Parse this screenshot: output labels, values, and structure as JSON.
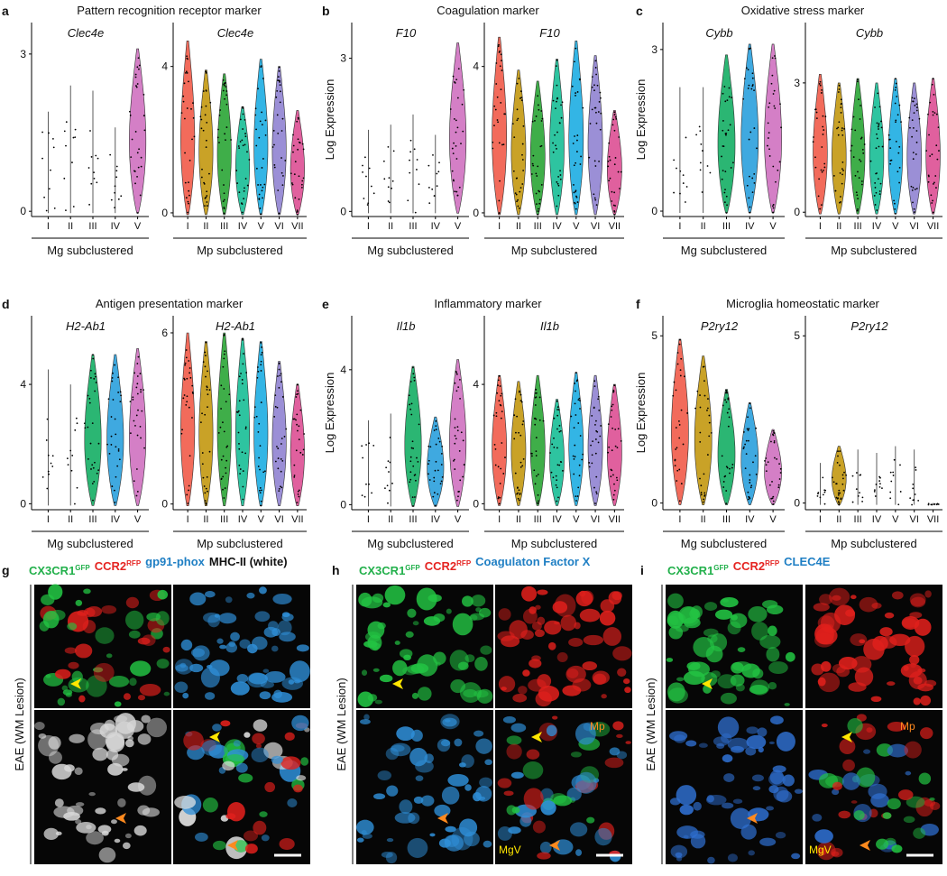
{
  "panels": [
    {
      "letter": "a",
      "title": "Pattern recognition receptor marker",
      "plots": [
        {
          "gene": "Clec4e",
          "group": "Mg subclustered",
          "categories": [
            "I",
            "II",
            "III",
            "IV",
            "V"
          ],
          "values": [
            1.9,
            2.4,
            2.3,
            1.6,
            3.1
          ],
          "colors": [
            null,
            null,
            null,
            null,
            "#d47fc6"
          ],
          "ylim": [
            -0.1,
            3.6
          ],
          "yticks": [
            0,
            3
          ]
        },
        {
          "gene": "Clec4e",
          "group": "Mp subclustered",
          "categories": [
            "I",
            "II",
            "III",
            "IV",
            "V",
            "VI",
            "VII"
          ],
          "values": [
            4.7,
            3.9,
            3.8,
            2.9,
            4.2,
            4.0,
            2.8
          ],
          "colors": [
            "#f26b5b",
            "#c9a227",
            "#3fae49",
            "#2ec4a0",
            "#33b5e5",
            "#9b8fd6",
            "#e0609e"
          ],
          "ylim": [
            -0.1,
            5.2
          ],
          "yticks": [
            0,
            4
          ]
        }
      ]
    },
    {
      "letter": "b",
      "title": "Coagulation marker",
      "plots": [
        {
          "gene": "F10",
          "group": "Mg subclustered",
          "ylabel": "Log Expression",
          "categories": [
            "I",
            "II",
            "III",
            "IV",
            "V"
          ],
          "values": [
            1.6,
            1.7,
            1.9,
            1.5,
            3.3
          ],
          "colors": [
            null,
            null,
            null,
            null,
            "#d47fc6"
          ],
          "ylim": [
            -0.1,
            3.7
          ],
          "yticks": [
            0,
            3
          ]
        },
        {
          "gene": "F10",
          "group": "Mp subclustered",
          "categories": [
            "I",
            "II",
            "III",
            "IV",
            "V",
            "VI",
            "VII"
          ],
          "values": [
            4.8,
            3.9,
            3.6,
            4.2,
            4.7,
            4.3,
            2.8
          ],
          "colors": [
            "#f26b5b",
            "#c9a227",
            "#3fae49",
            "#2ec4a0",
            "#33b5e5",
            "#9b8fd6",
            "#e0609e"
          ],
          "ylim": [
            -0.1,
            5.2
          ],
          "yticks": [
            0,
            4
          ]
        }
      ]
    },
    {
      "letter": "c",
      "title": "Oxidative stress marker",
      "plots": [
        {
          "gene": "Cybb",
          "group": "Mg subclustered",
          "ylabel": "Log Expression",
          "categories": [
            "I",
            "II",
            "III",
            "IV",
            "V"
          ],
          "values": [
            2.3,
            2.3,
            2.9,
            3.1,
            3.1
          ],
          "colors": [
            null,
            null,
            "#2bb673",
            "#3fa9e0",
            "#d47fc6"
          ],
          "ylim": [
            -0.1,
            3.5
          ],
          "yticks": [
            0,
            3
          ]
        },
        {
          "gene": "Cybb",
          "group": "Mp subclustered",
          "categories": [
            "I",
            "II",
            "III",
            "IV",
            "V",
            "VI",
            "VII"
          ],
          "values": [
            3.2,
            3.0,
            3.1,
            3.0,
            3.1,
            3.0,
            3.1
          ],
          "colors": [
            "#f26b5b",
            "#c9a227",
            "#3fae49",
            "#2ec4a0",
            "#33b5e5",
            "#9b8fd6",
            "#e0609e"
          ],
          "ylim": [
            -0.1,
            4.4
          ],
          "yticks": [
            0,
            3
          ]
        }
      ]
    },
    {
      "letter": "d",
      "title": "Antigen presentation marker",
      "plots": [
        {
          "gene": "H2-Ab1",
          "group": "Mg subclustered",
          "categories": [
            "I",
            "II",
            "III",
            "IV",
            "V"
          ],
          "values": [
            4.5,
            4.0,
            5.0,
            5.0,
            5.2
          ],
          "colors": [
            null,
            null,
            "#2bb673",
            "#3fa9e0",
            "#d47fc6"
          ],
          "ylim": [
            -0.2,
            6.3
          ],
          "yticks": [
            0,
            4
          ]
        },
        {
          "gene": "H2-Ab1",
          "group": "Mp subclustered",
          "categories": [
            "I",
            "II",
            "III",
            "IV",
            "V",
            "VI",
            "VII"
          ],
          "values": [
            6.0,
            5.7,
            6.0,
            5.8,
            5.7,
            5.0,
            4.2
          ],
          "colors": [
            "#f26b5b",
            "#c9a227",
            "#3fae49",
            "#2ec4a0",
            "#33b5e5",
            "#9b8fd6",
            "#e0609e"
          ],
          "ylim": [
            -0.2,
            6.6
          ],
          "yticks": [
            0,
            6
          ]
        }
      ]
    },
    {
      "letter": "e",
      "title": "Inflammatory marker",
      "plots": [
        {
          "gene": "Il1b",
          "group": "Mg subclustered",
          "ylabel": "Log Expression",
          "categories": [
            "I",
            "II",
            "III",
            "IV",
            "V"
          ],
          "values": [
            2.5,
            2.7,
            4.1,
            2.6,
            4.3
          ],
          "colors": [
            null,
            null,
            "#2bb673",
            "#3fa9e0",
            "#d47fc6"
          ],
          "ylim": [
            -0.15,
            5.6
          ],
          "yticks": [
            0,
            4
          ]
        },
        {
          "gene": "Il1b",
          "group": "Mp subclustered",
          "categories": [
            "I",
            "II",
            "III",
            "IV",
            "V",
            "VI",
            "VII"
          ],
          "values": [
            4.3,
            4.1,
            4.3,
            3.5,
            4.4,
            4.3,
            4.0
          ],
          "colors": [
            "#f26b5b",
            "#c9a227",
            "#3fae49",
            "#2ec4a0",
            "#33b5e5",
            "#9b8fd6",
            "#e0609e"
          ],
          "ylim": [
            -0.2,
            6.3
          ],
          "yticks": [
            0,
            4
          ]
        }
      ]
    },
    {
      "letter": "f",
      "title": "Microglia homeostatic marker",
      "plots": [
        {
          "gene": "P2ry12",
          "group": "Mg subclustered",
          "ylabel": "Log Expression",
          "categories": [
            "I",
            "II",
            "III",
            "IV",
            "V"
          ],
          "values": [
            4.9,
            4.4,
            3.4,
            3.0,
            2.2
          ],
          "colors": [
            "#f26b5b",
            "#c9a227",
            "#2bb673",
            "#3fa9e0",
            "#d47fc6"
          ],
          "ylim": [
            -0.2,
            5.6
          ],
          "yticks": [
            0,
            5
          ]
        },
        {
          "gene": "P2ry12",
          "group": "Mp subclustered",
          "categories": [
            "I",
            "II",
            "III",
            "IV",
            "V",
            "VI",
            "VII"
          ],
          "values": [
            1.2,
            1.7,
            1.6,
            1.5,
            1.7,
            1.6,
            0
          ],
          "colors": [
            null,
            "#c9a227",
            null,
            null,
            null,
            null,
            null
          ],
          "ylim": [
            -0.2,
            5.6
          ],
          "yticks": [
            0,
            5
          ]
        }
      ]
    }
  ],
  "images": [
    {
      "letter": "g",
      "side_label": "EAE (WM Lesion)",
      "legend": [
        {
          "text": "CX3CR1",
          "sup": "GFP",
          "color": "#22b04b"
        },
        {
          "text": "CCR2",
          "sup": "RFP",
          "color": "#e52421"
        },
        {
          "text": "gp91-phox",
          "color": "#1f7fc4"
        },
        {
          "text": "MHC-II (white)",
          "color": "#111111"
        }
      ],
      "annotations": []
    },
    {
      "letter": "h",
      "side_label": "EAE (WM Lesion)",
      "legend": [
        {
          "text": "CX3CR1",
          "sup": "GFP",
          "color": "#22b04b"
        },
        {
          "text": "CCR2",
          "sup": "RFP",
          "color": "#e52421"
        },
        {
          "text": "Coagulaton Factor X",
          "color": "#1f7fc4"
        }
      ],
      "annotations": [
        "Mp",
        "MgV"
      ]
    },
    {
      "letter": "i",
      "side_label": "EAE (WM Lesion)",
      "legend": [
        {
          "text": "CX3CR1",
          "sup": "GFP",
          "color": "#22b04b"
        },
        {
          "text": "CCR2",
          "sup": "RFP",
          "color": "#e52421"
        },
        {
          "text": "CLEC4E",
          "color": "#1f7fc4"
        }
      ],
      "annotations": [
        "Mp",
        "MgV"
      ]
    }
  ]
}
